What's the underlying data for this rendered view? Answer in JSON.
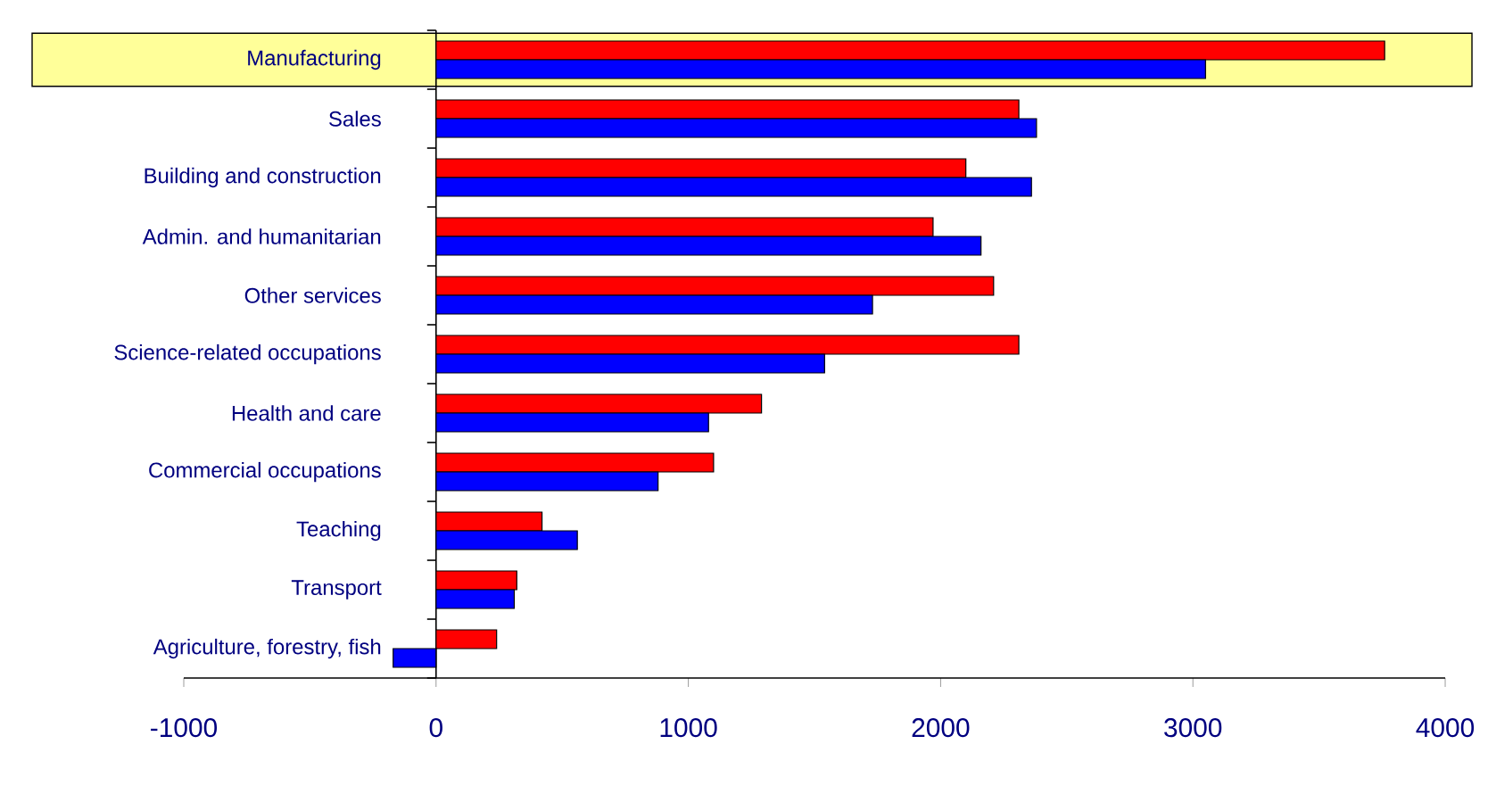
{
  "chart_data": {
    "type": "bar",
    "orientation": "horizontal",
    "categories": [
      "Manufacturing",
      "Sales",
      "Building and construction",
      "Admin. and humanitarian",
      "Other services",
      "Science-related occupations",
      "Health and care",
      "Commercial occupations",
      "Teaching",
      "Transport",
      "Agriculture, forestry, fish"
    ],
    "series": [
      {
        "color": "#ff0000",
        "values": [
          3760,
          2310,
          2100,
          1970,
          2210,
          2310,
          1290,
          1100,
          420,
          320,
          240
        ]
      },
      {
        "color": "#0000ff",
        "values": [
          3050,
          2380,
          2360,
          2160,
          1730,
          1540,
          1080,
          880,
          560,
          310,
          -170
        ]
      }
    ],
    "xlim": [
      -1000,
      4000
    ],
    "xticks": [
      -1000,
      0,
      1000,
      2000,
      3000,
      4000
    ],
    "bands": [
      {
        "axis": "y",
        "from": "Manufacturing",
        "to": "Manufacturing",
        "color": "#ffff99"
      }
    ],
    "grid": false
  }
}
